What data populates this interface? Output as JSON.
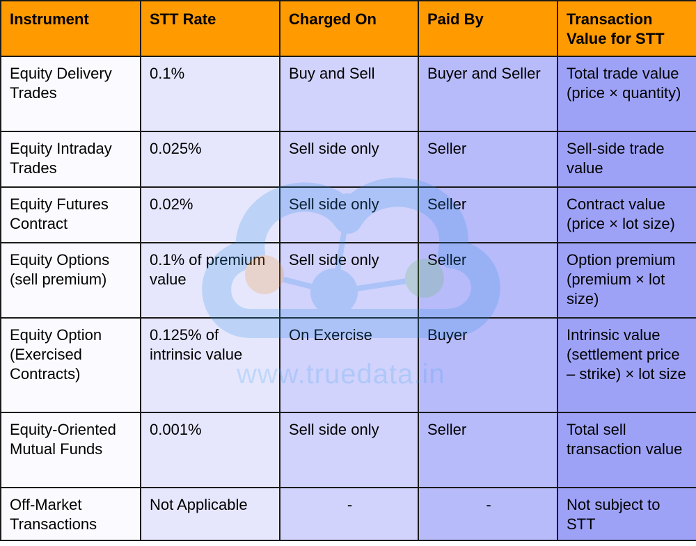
{
  "table": {
    "headers": [
      "Instrument",
      "STT Rate",
      "Charged On",
      "Paid By",
      "Transaction Value for STT"
    ],
    "rows": [
      [
        "Equity Delivery Trades",
        "0.1%",
        "Buy and Sell",
        "Buyer and Seller",
        "Total trade value (price × quantity)"
      ],
      [
        "Equity Intraday Trades",
        "0.025%",
        "Sell side only",
        "Seller",
        "Sell-side trade value"
      ],
      [
        "Equity Futures Contract",
        "0.02%",
        "Sell side only",
        "Seller",
        "Contract value (price × lot size)"
      ],
      [
        "Equity Options (sell premium)",
        "0.1% of premium value",
        "Sell side only",
        "Seller",
        "Option premium (premium × lot size)"
      ],
      [
        "Equity Option (Exercised Contracts)",
        "0.125% of intrinsic value",
        "On Exercise",
        "Buyer",
        "Intrinsic value (settlement price – strike) × lot size"
      ],
      [
        "Equity-Oriented Mutual Funds",
        "0.001%",
        "Sell side only",
        "Seller",
        "Total sell transaction value"
      ],
      [
        "Off-Market Transactions",
        "Not Applicable",
        "-",
        "-",
        "Not subject to STT"
      ]
    ]
  },
  "watermark": {
    "text": "www.truedata.in",
    "logo_icon": "cloud-network-icon"
  },
  "colors": {
    "header": "#ff9a00",
    "col1": "#fbfbff",
    "col2": "#e6e7fd",
    "col3": "#d1d3fc",
    "col4": "#b8bbfa",
    "col5": "#9ea2f7",
    "border": "#1a1a1a"
  }
}
